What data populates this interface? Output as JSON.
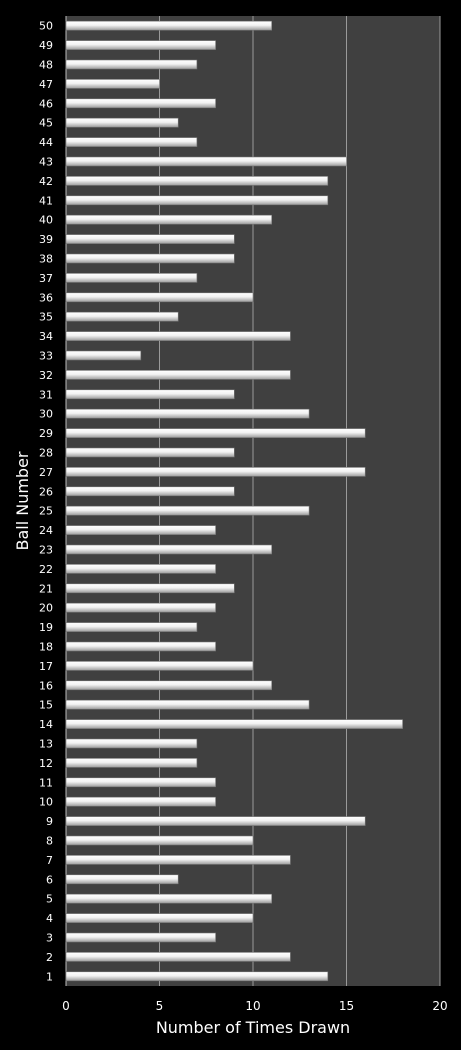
{
  "chart_data": {
    "type": "bar",
    "orientation": "horizontal",
    "xlabel": "Number of Times Drawn",
    "ylabel": "Ball Number",
    "xlim": [
      0,
      20
    ],
    "xticks": [
      0,
      5,
      10,
      15,
      20
    ],
    "grid": "vertical",
    "colors": {
      "background": "#000000",
      "plot_area": "#404040",
      "bar": "#e8e8e8",
      "grid": "#9a9a9a",
      "text": "#ffffff"
    },
    "categories": [
      "1",
      "2",
      "3",
      "4",
      "5",
      "6",
      "7",
      "8",
      "9",
      "10",
      "11",
      "12",
      "13",
      "14",
      "15",
      "16",
      "17",
      "18",
      "19",
      "20",
      "21",
      "22",
      "23",
      "24",
      "25",
      "26",
      "27",
      "28",
      "29",
      "30",
      "31",
      "32",
      "33",
      "34",
      "35",
      "36",
      "37",
      "38",
      "39",
      "40",
      "41",
      "42",
      "43",
      "44",
      "45",
      "46",
      "47",
      "48",
      "49",
      "50"
    ],
    "values": [
      14,
      12,
      8,
      10,
      11,
      6,
      12,
      10,
      16,
      8,
      8,
      7,
      7,
      18,
      13,
      11,
      10,
      8,
      7,
      8,
      9,
      8,
      11,
      8,
      13,
      9,
      16,
      9,
      16,
      13,
      9,
      12,
      4,
      12,
      6,
      10,
      7,
      9,
      9,
      11,
      14,
      14,
      15,
      7,
      6,
      8,
      5,
      7,
      8,
      11
    ]
  }
}
